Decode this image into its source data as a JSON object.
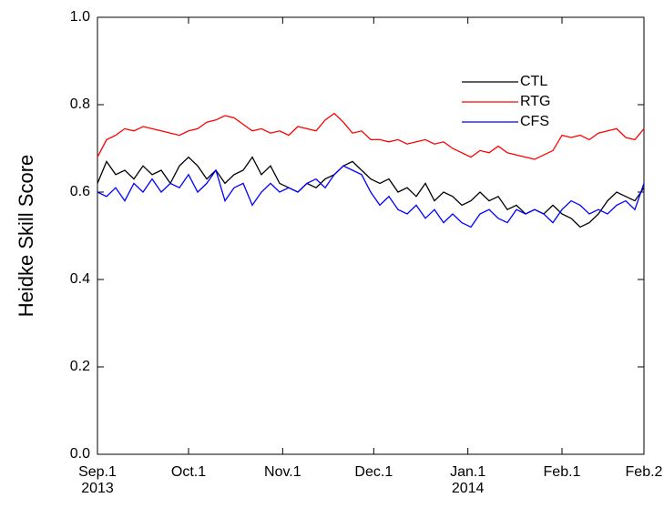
{
  "chart_data": {
    "type": "line",
    "ylabel": "Heidke Skill Score",
    "x": [
      0,
      3,
      6,
      9,
      12,
      15,
      18,
      21,
      24,
      27,
      30,
      33,
      36,
      39,
      42,
      45,
      48,
      51,
      54,
      57,
      60,
      63,
      66,
      69,
      72,
      75,
      78,
      81,
      84,
      87,
      90,
      93,
      96,
      99,
      102,
      105,
      108,
      111,
      114,
      117,
      120,
      123,
      126,
      129,
      132,
      135,
      138,
      141,
      144,
      147,
      150,
      153,
      156,
      159,
      162,
      165,
      168,
      171,
      174,
      177,
      180
    ],
    "xlim": [
      0,
      180
    ],
    "xticks": [
      {
        "value": 0,
        "label": "Sep.1"
      },
      {
        "value": 30,
        "label": "Oct.1"
      },
      {
        "value": 61,
        "label": "Nov.1"
      },
      {
        "value": 91,
        "label": "Dec.1"
      },
      {
        "value": 122,
        "label": "Jan.1"
      },
      {
        "value": 153,
        "label": "Feb.1"
      },
      {
        "value": 180,
        "label": "Feb.2"
      }
    ],
    "year_labels": [
      {
        "value": 0,
        "label": "2013"
      },
      {
        "value": 122,
        "label": "2014"
      }
    ],
    "ylim": [
      0,
      1
    ],
    "yticks": [
      {
        "value": 0,
        "label": "0.0"
      },
      0.2,
      0.4,
      0.6,
      0.8,
      {
        "value": 1,
        "label": "1.0"
      }
    ],
    "legend": "upper right",
    "series": [
      {
        "name": "CTL",
        "color": "#000000",
        "values": [
          0.62,
          0.67,
          0.64,
          0.65,
          0.63,
          0.66,
          0.64,
          0.65,
          0.62,
          0.66,
          0.68,
          0.66,
          0.63,
          0.65,
          0.62,
          0.64,
          0.65,
          0.68,
          0.64,
          0.66,
          0.62,
          0.61,
          0.6,
          0.62,
          0.61,
          0.63,
          0.64,
          0.66,
          0.67,
          0.65,
          0.63,
          0.62,
          0.63,
          0.6,
          0.61,
          0.59,
          0.62,
          0.58,
          0.6,
          0.59,
          0.57,
          0.58,
          0.6,
          0.58,
          0.59,
          0.56,
          0.57,
          0.55,
          0.56,
          0.55,
          0.57,
          0.55,
          0.54,
          0.52,
          0.53,
          0.55,
          0.58,
          0.6,
          0.59,
          0.58,
          0.61
        ]
      },
      {
        "name": "RTG",
        "color": "#ff0000",
        "values": [
          0.68,
          0.72,
          0.73,
          0.745,
          0.74,
          0.75,
          0.745,
          0.74,
          0.735,
          0.73,
          0.74,
          0.745,
          0.76,
          0.765,
          0.775,
          0.77,
          0.755,
          0.74,
          0.745,
          0.735,
          0.74,
          0.73,
          0.75,
          0.745,
          0.74,
          0.765,
          0.78,
          0.76,
          0.735,
          0.74,
          0.72,
          0.72,
          0.715,
          0.72,
          0.71,
          0.715,
          0.72,
          0.71,
          0.715,
          0.7,
          0.69,
          0.68,
          0.695,
          0.69,
          0.705,
          0.69,
          0.685,
          0.68,
          0.675,
          0.685,
          0.695,
          0.73,
          0.725,
          0.73,
          0.72,
          0.735,
          0.74,
          0.745,
          0.725,
          0.72,
          0.745
        ]
      },
      {
        "name": "CFS",
        "color": "#0000ff",
        "values": [
          0.6,
          0.59,
          0.61,
          0.58,
          0.62,
          0.6,
          0.63,
          0.6,
          0.62,
          0.61,
          0.64,
          0.6,
          0.62,
          0.65,
          0.58,
          0.61,
          0.62,
          0.57,
          0.6,
          0.62,
          0.6,
          0.61,
          0.6,
          0.62,
          0.63,
          0.61,
          0.64,
          0.66,
          0.65,
          0.64,
          0.6,
          0.57,
          0.59,
          0.56,
          0.55,
          0.57,
          0.54,
          0.56,
          0.53,
          0.55,
          0.53,
          0.52,
          0.55,
          0.56,
          0.54,
          0.53,
          0.56,
          0.55,
          0.56,
          0.55,
          0.53,
          0.56,
          0.58,
          0.57,
          0.55,
          0.56,
          0.55,
          0.57,
          0.58,
          0.56,
          0.62
        ]
      }
    ]
  }
}
